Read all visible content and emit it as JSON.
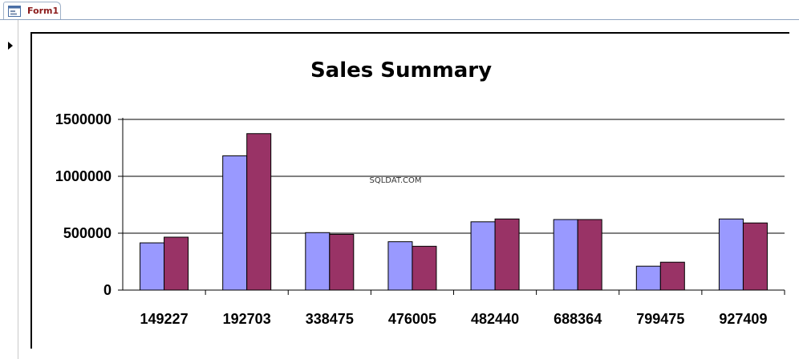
{
  "tab": {
    "label": "Form1",
    "icon": "form-icon"
  },
  "record_selector": {
    "icon": "current-record-arrow-icon"
  },
  "watermark": "SQLDAT.COM",
  "colors": {
    "series1": "#9999ff",
    "series2": "#993366",
    "tab_label": "#8b1a1a"
  },
  "chart_data": {
    "type": "bar",
    "title": "Sales Summary",
    "xlabel": "",
    "ylabel": "",
    "categories": [
      "149227",
      "192703",
      "338475",
      "476005",
      "482440",
      "688364",
      "799475",
      "927409"
    ],
    "series": [
      {
        "values": [
          415000,
          1180000,
          505000,
          425000,
          600000,
          620000,
          210000,
          625000
        ]
      },
      {
        "values": [
          465000,
          1375000,
          490000,
          385000,
          625000,
          620000,
          245000,
          590000
        ]
      }
    ],
    "ylim": [
      0,
      1500000
    ],
    "yticks": [
      "0",
      "500000",
      "1000000",
      "1500000"
    ],
    "grid": true,
    "legend": "none"
  }
}
